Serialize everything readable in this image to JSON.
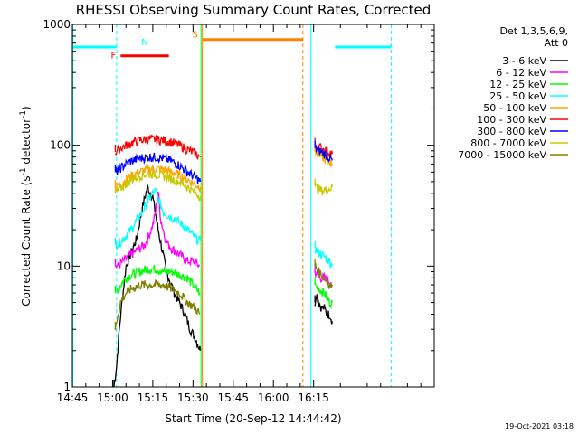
{
  "chart_data": {
    "type": "line",
    "title": "RHESSI Observing Summary Count Rates, Corrected",
    "xlabel": "Start Time (20-Sep-12 14:44:42)",
    "ylabel_main": "Corrected Count Rate (s",
    "ylabel_sup1": "-1",
    "ylabel_mid": " detector",
    "ylabel_sup2": "-1",
    "ylabel_end": ")",
    "yscale": "log",
    "ylim": [
      1,
      1000
    ],
    "xlim_min": [
      0,
      135
    ],
    "x_ticks": [
      "14:45",
      "15:00",
      "15:15",
      "15:30",
      "15:45",
      "16:00",
      "16:15"
    ],
    "x_tick_min": [
      0,
      15,
      30,
      45,
      60,
      75,
      90
    ],
    "y_ticks": [
      "1",
      "10",
      "100",
      "1000"
    ],
    "y_tick_vals": [
      1,
      10,
      100,
      1000
    ],
    "legend": {
      "header1": "Det 1,3,5,6,9,",
      "header2": "Att 0",
      "placement": "right"
    },
    "footer": "19-Oct-2021 03:18",
    "series": [
      {
        "name": "3 - 6 keV",
        "color": "#000000",
        "segments": [
          {
            "x": [
              15.5,
              16.5,
              17.5,
              18.5,
              20,
              22,
              24,
              26,
              28,
              30,
              32,
              34,
              35,
              36,
              38,
              40,
              42,
              44,
              46,
              47.8
            ],
            "y": [
              1,
              1.5,
              3,
              5,
              10,
              13,
              17,
              30,
              45,
              37,
              20,
              12,
              9,
              8,
              6,
              5,
              4,
              3,
              2.5,
              2
            ]
          },
          {
            "x": [
              90.5,
              91,
              92,
              93,
              94,
              95,
              96,
              97
            ],
            "y": [
              5,
              6,
              5,
              4.5,
              4.5,
              4,
              4,
              3.5
            ]
          }
        ]
      },
      {
        "name": "6 - 12 keV",
        "color": "#ff00ff",
        "segments": [
          {
            "x": [
              16,
              17,
              19,
              21,
              23,
              25,
              27,
              29,
              30,
              31,
              32,
              33,
              35,
              37,
              39,
              41,
              43,
              45,
              47.5
            ],
            "y": [
              10,
              10,
              11,
              12,
              13,
              14,
              15,
              19,
              22,
              28,
              42,
              24,
              16,
              14,
              13,
              12,
              11,
              11,
              10
            ]
          },
          {
            "x": [
              90.5,
              92,
              94,
              96,
              97
            ],
            "y": [
              9,
              8,
              8,
              7.5,
              7
            ]
          }
        ]
      },
      {
        "name": "12 - 25 keV",
        "color": "#00ff00",
        "segments": [
          {
            "x": [
              16,
              18,
              20,
              22,
              25,
              28,
              31,
              34,
              37,
              40,
              43,
              45,
              47.5
            ],
            "y": [
              6,
              7,
              8,
              8.5,
              9,
              9.5,
              9.5,
              9,
              9,
              8.5,
              8,
              7,
              6
            ]
          },
          {
            "x": [
              90.5,
              92,
              94,
              96,
              97
            ],
            "y": [
              7,
              6.5,
              6,
              5,
              5
            ]
          }
        ]
      },
      {
        "name": "25 - 50 keV",
        "color": "#00ffff",
        "segments": [
          {
            "x": [
              16,
              18,
              20,
              22,
              24,
              26,
              28,
              30,
              31,
              32,
              34,
              36,
              38,
              40,
              42,
              44,
              46,
              47.8
            ],
            "y": [
              15,
              16,
              18,
              20,
              24,
              28,
              34,
              40,
              42,
              36,
              28,
              26,
              25,
              23,
              21,
              19,
              17,
              16
            ]
          },
          {
            "x": [
              90.5,
              92,
              94,
              96,
              97
            ],
            "y": [
              14,
              13,
              12,
              11,
              10
            ]
          }
        ]
      },
      {
        "name": "50 - 100 keV",
        "color": "#ffa500",
        "segments": [
          {
            "x": [
              16,
              18,
              20,
              22,
              25,
              28,
              31,
              34,
              37,
              40,
              43,
              46,
              47.8
            ],
            "y": [
              45,
              48,
              52,
              56,
              60,
              63,
              64,
              63,
              60,
              57,
              52,
              47,
              45
            ]
          },
          {
            "x": [
              90.5,
              91.5,
              93,
              95,
              97
            ],
            "y": [
              88,
              86,
              80,
              75,
              70
            ]
          }
        ]
      },
      {
        "name": "100 - 300 keV",
        "color": "#ff0000",
        "segments": [
          {
            "x": [
              16,
              18,
              20,
              22,
              25,
              28,
              31,
              34,
              37,
              40,
              43,
              46,
              47.8
            ],
            "y": [
              88,
              95,
              100,
              105,
              110,
              112,
              112,
              110,
              106,
              100,
              92,
              85,
              80
            ]
          },
          {
            "x": [
              90.5,
              91.5,
              93,
              95,
              97
            ],
            "y": [
              100,
              98,
              95,
              90,
              85
            ]
          }
        ]
      },
      {
        "name": "300 - 800 keV",
        "color": "#0000ff",
        "segments": [
          {
            "x": [
              16,
              18,
              20,
              22,
              25,
              28,
              31,
              34,
              37,
              40,
              43,
              46,
              47.8
            ],
            "y": [
              60,
              65,
              70,
              74,
              78,
              80,
              80,
              78,
              74,
              68,
              60,
              54,
              50
            ]
          },
          {
            "x": [
              90.5,
              91.5,
              93,
              95,
              97
            ],
            "y": [
              95,
              92,
              88,
              82,
              75
            ]
          }
        ]
      },
      {
        "name": "800 - 7000 keV",
        "color": "#c8c800",
        "segments": [
          {
            "x": [
              16,
              18,
              20,
              22,
              25,
              28,
              31,
              34,
              37,
              40,
              43,
              46,
              47.8
            ],
            "y": [
              40,
              44,
              48,
              52,
              56,
              58,
              58,
              56,
              53,
              50,
              45,
              40,
              38
            ]
          },
          {
            "x": [
              90.5,
              91.5,
              93,
              95,
              97
            ],
            "y": [
              46,
              44,
              42,
              43,
              45
            ]
          }
        ]
      },
      {
        "name": "7000 - 15000 keV",
        "color": "#808000",
        "segments": [
          {
            "x": [
              16,
              17,
              18,
              20,
              22,
              25,
              28,
              31,
              34,
              37,
              40,
              43,
              46,
              47.5
            ],
            "y": [
              3,
              4,
              5,
              6,
              6.5,
              7,
              7,
              7,
              7,
              6.5,
              6,
              5,
              4.5,
              4
            ]
          },
          {
            "x": [
              90.5,
              92,
              94,
              96,
              97
            ],
            "y": [
              10,
              9,
              8,
              7,
              7
            ]
          }
        ]
      }
    ],
    "bars": [
      {
        "label": "N",
        "color": "#00ffff",
        "y": 650,
        "segments": [
          [
            0,
            16.5
          ],
          [
            98,
            119
          ]
        ]
      },
      {
        "label": "F",
        "color": "#ff0000",
        "y": 550,
        "segments": [
          [
            18,
            36
          ]
        ]
      },
      {
        "label": "S",
        "color": "#ff8000",
        "y": 750,
        "segments": [
          [
            48.5,
            86
          ]
        ]
      }
    ],
    "vlines": [
      {
        "x": 0.2,
        "color": "#00ffff",
        "dash": false
      },
      {
        "x": 16.5,
        "color": "#00ffff",
        "dash": true
      },
      {
        "x": 48,
        "color": "#00ff00",
        "dash": false
      },
      {
        "x": 48.5,
        "color": "#ff8000",
        "dash": false
      },
      {
        "x": 86,
        "color": "#ff8000",
        "dash": true
      },
      {
        "x": 89,
        "color": "#00ffff",
        "dash": false
      },
      {
        "x": 119,
        "color": "#00ffff",
        "dash": true
      }
    ]
  }
}
